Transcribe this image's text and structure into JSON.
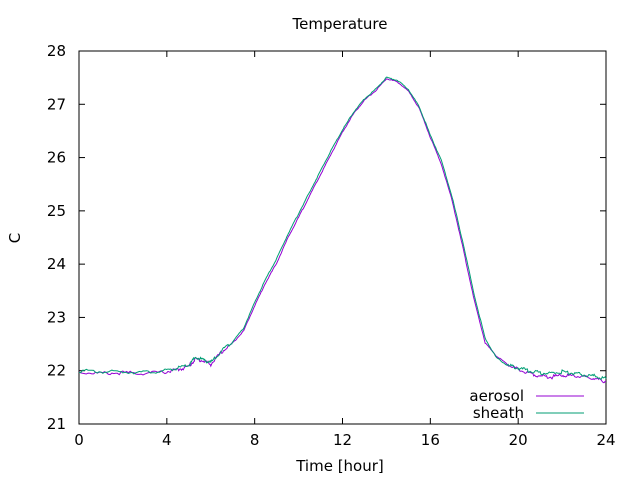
{
  "chart_data": {
    "type": "line",
    "title": "Temperature",
    "xlabel": "Time [hour]",
    "ylabel": "C",
    "xlim": [
      0,
      24
    ],
    "ylim": [
      21,
      28
    ],
    "xticks": [
      0,
      4,
      8,
      12,
      16,
      20,
      24
    ],
    "yticks": [
      21,
      22,
      23,
      24,
      25,
      26,
      27,
      28
    ],
    "grid": false,
    "legend_position": "bottom-right",
    "series": [
      {
        "name": "aerosol",
        "color": "#9400d3",
        "x": [
          0,
          1,
          2,
          3,
          4,
          4.5,
          5,
          5.3,
          5.7,
          6,
          6.5,
          7,
          7.5,
          8,
          8.5,
          9,
          9.5,
          10,
          10.5,
          11,
          11.5,
          12,
          12.5,
          13,
          13.5,
          14,
          14.5,
          15,
          15.5,
          16,
          16.5,
          17,
          17.5,
          18,
          18.5,
          19,
          19.5,
          20,
          20.5,
          21,
          21.5,
          22,
          22.5,
          23,
          23.5,
          24
        ],
        "y": [
          21.97,
          21.95,
          21.96,
          21.95,
          21.98,
          22.02,
          22.08,
          22.22,
          22.18,
          22.12,
          22.35,
          22.52,
          22.75,
          23.22,
          23.65,
          24.02,
          24.48,
          24.88,
          25.28,
          25.68,
          26.08,
          26.48,
          26.82,
          27.08,
          27.25,
          27.48,
          27.42,
          27.25,
          26.92,
          26.38,
          25.88,
          25.18,
          24.28,
          23.32,
          22.52,
          22.28,
          22.12,
          22.02,
          21.96,
          21.9,
          21.88,
          21.92,
          21.9,
          21.88,
          21.85,
          21.8
        ]
      },
      {
        "name": "sheath",
        "color": "#009e73",
        "x": [
          0,
          1,
          2,
          3,
          4,
          4.5,
          5,
          5.3,
          5.7,
          6,
          6.5,
          7,
          7.5,
          8,
          8.5,
          9,
          9.5,
          10,
          10.5,
          11,
          11.5,
          12,
          12.5,
          13,
          13.5,
          14,
          14.5,
          15,
          15.5,
          16,
          16.5,
          17,
          17.5,
          18,
          18.5,
          19,
          19.5,
          20,
          20.5,
          21,
          21.5,
          22,
          22.5,
          23,
          23.5,
          24
        ],
        "y": [
          22.0,
          21.98,
          21.98,
          21.97,
          22.0,
          22.05,
          22.1,
          22.25,
          22.2,
          22.15,
          22.38,
          22.55,
          22.8,
          23.28,
          23.72,
          24.1,
          24.55,
          24.95,
          25.35,
          25.75,
          26.15,
          26.52,
          26.85,
          27.1,
          27.28,
          27.5,
          27.45,
          27.28,
          26.95,
          26.42,
          25.95,
          25.25,
          24.38,
          23.42,
          22.6,
          22.25,
          22.1,
          22.05,
          22.0,
          21.96,
          21.95,
          21.98,
          21.95,
          21.92,
          21.9,
          21.85
        ]
      }
    ]
  }
}
